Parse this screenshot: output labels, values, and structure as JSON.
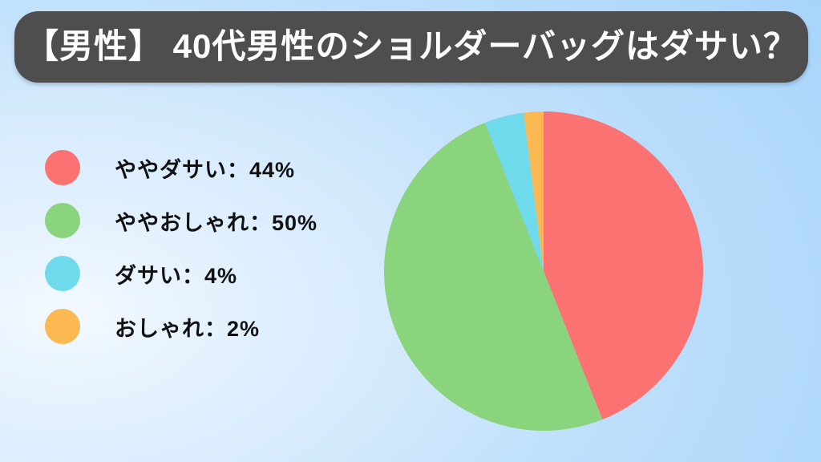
{
  "title": {
    "text": "【男性】 40代男性のショルダーバッグはダサい？"
  },
  "legend": {
    "items": [
      {
        "label": "ややダサい",
        "value": 44,
        "display": "ややダサい：44%",
        "color": "#FB7272"
      },
      {
        "label": "ややおしゃれ",
        "value": 50,
        "display": "ややおしゃれ：50%",
        "color": "#8BD47E"
      },
      {
        "label": "ダサい",
        "value": 4,
        "display": "ダサい：4%",
        "color": "#6FDAEC"
      },
      {
        "label": "おしゃれ",
        "value": 2,
        "display": "おしゃれ：2%",
        "color": "#FCB853"
      }
    ]
  },
  "chart_data": {
    "type": "pie",
    "title": "【男性】 40代男性のショルダーバッグはダサい？",
    "labels": [
      "ややダサい",
      "ややおしゃれ",
      "ダサい",
      "おしゃれ"
    ],
    "values": [
      44,
      50,
      4,
      2
    ],
    "unit": "%",
    "colors": [
      "#FB7272",
      "#8BD47E",
      "#6FDAEC",
      "#FCB853"
    ],
    "start_angle_deg": 0,
    "direction": "clockwise",
    "legend_position": "left",
    "data_labels": false
  },
  "colors": {
    "banner_bg": "#4E4E4E",
    "banner_text": "#FFFFFF",
    "legend_text": "#111111",
    "background_gradient": [
      "#F3F9FF",
      "#D9ECFD",
      "#BFE0FB",
      "#A3D2FA"
    ]
  }
}
